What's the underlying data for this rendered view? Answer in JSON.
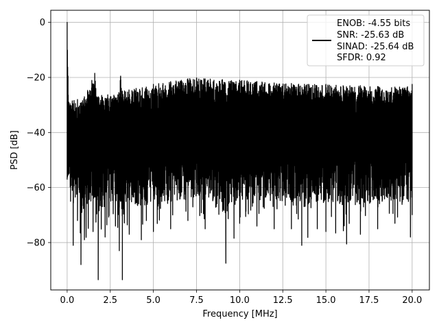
{
  "chart_data": {
    "type": "line",
    "xlabel": "Frequency [MHz]",
    "ylabel": "PSD [dB]",
    "xlim": [
      -0.95,
      21.0
    ],
    "ylim": [
      -97.2,
      4.4
    ],
    "xticks": [
      0.0,
      2.5,
      5.0,
      7.5,
      10.0,
      12.5,
      15.0,
      17.5,
      20.0
    ],
    "xtick_labels": [
      "0.0",
      "2.5",
      "5.0",
      "7.5",
      "10.0",
      "12.5",
      "15.0",
      "17.5",
      "20.0"
    ],
    "yticks": [
      0,
      -20,
      -40,
      -60,
      -80
    ],
    "ytick_labels": [
      "0",
      "−20",
      "−40",
      "−60",
      "−80"
    ],
    "grid": true,
    "legend_position": "top-right",
    "line_color": "#000000",
    "series": [
      {
        "upper_envelope": {
          "x": [
            0.0,
            0.05,
            0.1,
            0.3,
            0.6,
            1.0,
            1.6,
            1.7,
            2.0,
            3.0,
            3.1,
            3.2,
            4.0,
            5.0,
            6.0,
            7.0,
            7.5,
            8.0,
            9.0,
            10.0,
            11.0,
            12.0,
            13.0,
            14.0,
            15.0,
            16.0,
            17.0,
            18.0,
            19.0,
            20.0
          ],
          "y": [
            0,
            -19.5,
            -29,
            -28.5,
            -28,
            -27,
            -18.5,
            -27,
            -26.5,
            -25.5,
            -19.5,
            -25,
            -24,
            -22.5,
            -21.5,
            -20.5,
            -20.2,
            -20.5,
            -20.8,
            -21,
            -21.5,
            -22,
            -22.2,
            -22.5,
            -22.5,
            -23,
            -23,
            -23.3,
            -23.5,
            -22.5
          ]
        },
        "lower_envelope": {
          "x": [
            0.0,
            0.2,
            0.35,
            0.6,
            0.8,
            1.0,
            1.5,
            1.8,
            2.2,
            2.8,
            3.2,
            3.6,
            4.3,
            5.0,
            6.0,
            7.0,
            8.0,
            9.2,
            10.0,
            11.0,
            12.0,
            13.0,
            13.6,
            14.5,
            15.0,
            16.2,
            17.0,
            18.0,
            19.0,
            19.9,
            20.0
          ],
          "y": [
            -57,
            -65,
            -81,
            -72,
            -88,
            -79,
            -76,
            -93.5,
            -78,
            -74,
            -93.5,
            -77,
            -79,
            -76,
            -75,
            -72,
            -75,
            -87.5,
            -73,
            -74,
            -75,
            -75,
            -81,
            -75,
            -76,
            -80.5,
            -77,
            -75,
            -73,
            -78,
            -70
          ]
        }
      }
    ],
    "legend": {
      "entries": [
        "ENOB: -4.55 bits",
        "SNR: -25.63 dB",
        "SINAD: -25.64 dB",
        "SFDR: 0.92"
      ]
    }
  }
}
